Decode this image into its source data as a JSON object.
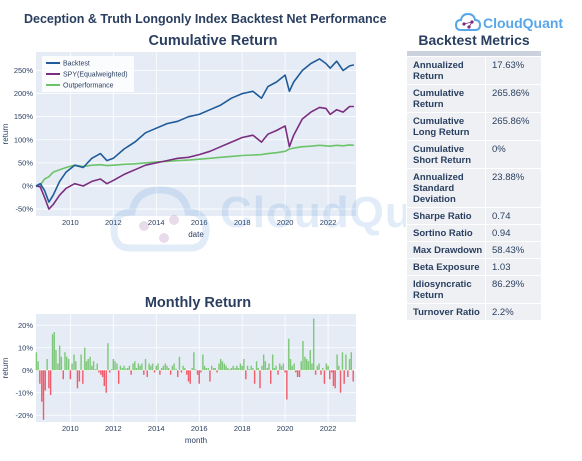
{
  "title": "Deception & Truth Longonly Index Backtest Net Performance",
  "logo_text": "CloudQuant",
  "watermark_text": "CloudQuant",
  "colors": {
    "backtest": "#1f5b99",
    "spy": "#7b2d7f",
    "outperformance": "#6cc36a",
    "positive": "#7fc77a",
    "negative": "#ee5d6c",
    "plot_bg": "#e5ecf6"
  },
  "cumulative": {
    "title": "Cumulative Return",
    "xlabel": "date",
    "ylabel": "return",
    "x_ticks": [
      "2010",
      "2012",
      "2014",
      "2016",
      "2018",
      "2020",
      "2022"
    ],
    "y_ticks": [
      "-50%",
      "0%",
      "50%",
      "100%",
      "150%",
      "200%",
      "250%"
    ],
    "legend": [
      "Backtest",
      "SPY(Equalweighted)",
      "Outperformance"
    ]
  },
  "monthly": {
    "title": "Monthly Return",
    "xlabel": "month",
    "ylabel": "return",
    "x_ticks": [
      "2010",
      "2012",
      "2014",
      "2016",
      "2018",
      "2020",
      "2022"
    ],
    "y_ticks": [
      "-20%",
      "-10%",
      "0%",
      "10%",
      "20%"
    ]
  },
  "metrics": {
    "title": "Backtest Metrics",
    "rows": [
      {
        "label": "Annualized Return",
        "value": "17.63%"
      },
      {
        "label": "Cumulative Return",
        "value": "265.86%"
      },
      {
        "label": "Cumulative Long Return",
        "value": "265.86%"
      },
      {
        "label": "Cumulative Short Return",
        "value": "0%"
      },
      {
        "label": "Annualized Standard Deviation",
        "value": "23.88%"
      },
      {
        "label": "Sharpe Ratio",
        "value": "0.74"
      },
      {
        "label": "Sortino Ratio",
        "value": "0.94"
      },
      {
        "label": "Max Drawdown",
        "value": "58.43%"
      },
      {
        "label": "Beta Exposure",
        "value": "1.03"
      },
      {
        "label": "Idiosyncratic Return",
        "value": "86.29%"
      },
      {
        "label": "Turnover Ratio",
        "value": "2.2%"
      }
    ]
  },
  "chart_data": [
    {
      "type": "line",
      "title": "Cumulative Return",
      "xlabel": "date",
      "ylabel": "return",
      "xlim": [
        2008.4,
        2023.3
      ],
      "ylim": [
        -65,
        290
      ],
      "series": [
        {
          "name": "Backtest",
          "x": [
            2008.4,
            2008.6,
            2008.8,
            2009.0,
            2009.2,
            2009.5,
            2009.8,
            2010.2,
            2010.6,
            2011.0,
            2011.4,
            2011.7,
            2012.0,
            2012.5,
            2013.0,
            2013.5,
            2014.0,
            2014.5,
            2015.0,
            2015.5,
            2016.0,
            2016.5,
            2017.0,
            2017.5,
            2018.0,
            2018.5,
            2018.9,
            2019.2,
            2019.6,
            2020.0,
            2020.2,
            2020.4,
            2020.8,
            2021.2,
            2021.6,
            2021.9,
            2022.1,
            2022.4,
            2022.7,
            2023.0,
            2023.2
          ],
          "y": [
            0,
            5,
            -10,
            -35,
            -20,
            10,
            30,
            45,
            40,
            60,
            70,
            55,
            60,
            80,
            95,
            115,
            125,
            135,
            140,
            150,
            155,
            165,
            175,
            190,
            200,
            205,
            190,
            215,
            225,
            240,
            205,
            225,
            250,
            265,
            275,
            265,
            255,
            270,
            250,
            260,
            262
          ]
        },
        {
          "name": "SPY(Equalweighted)",
          "x": [
            2008.4,
            2008.6,
            2008.8,
            2009.0,
            2009.2,
            2009.5,
            2009.8,
            2010.2,
            2010.6,
            2011.0,
            2011.4,
            2011.7,
            2012.0,
            2012.5,
            2013.0,
            2013.5,
            2014.0,
            2014.5,
            2015.0,
            2015.5,
            2016.0,
            2016.5,
            2017.0,
            2017.5,
            2018.0,
            2018.5,
            2018.9,
            2019.2,
            2019.6,
            2020.0,
            2020.2,
            2020.4,
            2020.8,
            2021.2,
            2021.6,
            2021.9,
            2022.1,
            2022.4,
            2022.7,
            2023.0,
            2023.2
          ],
          "y": [
            0,
            -2,
            -25,
            -50,
            -40,
            -20,
            -5,
            5,
            0,
            10,
            15,
            5,
            12,
            25,
            35,
            45,
            50,
            55,
            60,
            62,
            68,
            75,
            85,
            95,
            105,
            110,
            95,
            112,
            120,
            130,
            85,
            110,
            145,
            160,
            170,
            168,
            155,
            165,
            160,
            172,
            172
          ]
        },
        {
          "name": "Outperformance",
          "x": [
            2008.4,
            2008.6,
            2008.8,
            2009.0,
            2009.2,
            2009.5,
            2009.8,
            2010.2,
            2010.6,
            2011.0,
            2011.4,
            2011.7,
            2012.0,
            2012.5,
            2013.0,
            2013.5,
            2014.0,
            2014.5,
            2015.0,
            2015.5,
            2016.0,
            2016.5,
            2017.0,
            2017.5,
            2018.0,
            2018.5,
            2018.9,
            2019.2,
            2019.6,
            2020.0,
            2020.2,
            2020.4,
            2020.8,
            2021.2,
            2021.6,
            2021.9,
            2022.1,
            2022.4,
            2022.7,
            2023.0,
            2023.2
          ],
          "y": [
            0,
            2,
            15,
            20,
            30,
            35,
            40,
            45,
            42,
            45,
            46,
            44,
            45,
            47,
            48,
            50,
            52,
            53,
            55,
            56,
            58,
            60,
            62,
            64,
            66,
            67,
            68,
            70,
            72,
            75,
            80,
            82,
            85,
            86,
            88,
            87,
            86,
            88,
            87,
            89,
            88
          ]
        }
      ],
      "legend_position": "top-left",
      "grid": true
    },
    {
      "type": "bar",
      "title": "Monthly Return",
      "xlabel": "month",
      "ylabel": "return",
      "xlim": [
        2008.4,
        2023.3
      ],
      "ylim": [
        -23,
        25
      ],
      "x": [
        2008.42,
        2008.5,
        2008.58,
        2008.67,
        2008.75,
        2008.83,
        2008.92,
        2009.0,
        2009.08,
        2009.17,
        2009.25,
        2009.33,
        2009.42,
        2009.5,
        2009.58,
        2009.67,
        2009.75,
        2009.83,
        2009.92,
        2010.0,
        2010.08,
        2010.17,
        2010.25,
        2010.33,
        2010.42,
        2010.5,
        2010.58,
        2010.67,
        2010.75,
        2010.83,
        2010.92,
        2011.0,
        2011.08,
        2011.17,
        2011.25,
        2011.33,
        2011.42,
        2011.5,
        2011.58,
        2011.67,
        2011.75,
        2011.83,
        2011.92,
        2012.0,
        2012.08,
        2012.17,
        2012.25,
        2012.33,
        2012.42,
        2012.5,
        2012.58,
        2012.67,
        2012.75,
        2012.83,
        2012.92,
        2013.0,
        2013.08,
        2013.17,
        2013.25,
        2013.33,
        2013.42,
        2013.5,
        2013.58,
        2013.67,
        2013.75,
        2013.83,
        2013.92,
        2014.0,
        2014.08,
        2014.17,
        2014.25,
        2014.33,
        2014.42,
        2014.5,
        2014.58,
        2014.67,
        2014.75,
        2014.83,
        2014.92,
        2015.0,
        2015.08,
        2015.17,
        2015.25,
        2015.33,
        2015.42,
        2015.5,
        2015.58,
        2015.67,
        2015.75,
        2015.83,
        2015.92,
        2016.0,
        2016.08,
        2016.17,
        2016.25,
        2016.33,
        2016.42,
        2016.5,
        2016.58,
        2016.67,
        2016.75,
        2016.83,
        2016.92,
        2017.0,
        2017.08,
        2017.17,
        2017.25,
        2017.33,
        2017.42,
        2017.5,
        2017.58,
        2017.67,
        2017.75,
        2017.83,
        2017.92,
        2018.0,
        2018.08,
        2018.17,
        2018.25,
        2018.33,
        2018.42,
        2018.5,
        2018.58,
        2018.67,
        2018.75,
        2018.83,
        2018.92,
        2019.0,
        2019.08,
        2019.17,
        2019.25,
        2019.33,
        2019.42,
        2019.5,
        2019.58,
        2019.67,
        2019.75,
        2019.83,
        2019.92,
        2020.0,
        2020.08,
        2020.17,
        2020.25,
        2020.33,
        2020.42,
        2020.5,
        2020.58,
        2020.67,
        2020.75,
        2020.83,
        2020.92,
        2021.0,
        2021.08,
        2021.17,
        2021.25,
        2021.33,
        2021.42,
        2021.5,
        2021.58,
        2021.67,
        2021.75,
        2021.83,
        2021.92,
        2022.0,
        2022.08,
        2022.17,
        2022.25,
        2022.33,
        2022.42,
        2022.5,
        2022.58,
        2022.67,
        2022.75,
        2022.83,
        2022.92,
        2023.0,
        2023.08,
        2023.17
      ],
      "values": [
        8,
        4,
        -6,
        -14,
        -22,
        -9,
        5,
        -8,
        -11,
        16,
        17,
        9,
        3,
        11,
        6,
        -4,
        8,
        6,
        5,
        -4,
        3,
        7,
        4,
        -8,
        -5,
        7,
        -6,
        10,
        4,
        5,
        6,
        2,
        4,
        0.5,
        3,
        -1,
        -2,
        -3,
        -7,
        -10,
        12,
        -1,
        0.5,
        5,
        4,
        3,
        -6,
        2,
        1,
        2,
        0.8,
        1,
        2,
        -2,
        3,
        4,
        1,
        3,
        2,
        3,
        -2,
        5,
        -3,
        3,
        2,
        3,
        -1,
        2,
        3,
        -2,
        1,
        2,
        3,
        2,
        1,
        -2,
        2,
        3,
        0.7,
        -3,
        6,
        -1,
        2,
        1,
        -2,
        -5,
        -6,
        1,
        8,
        0.5,
        -2,
        -6,
        -1,
        7,
        2,
        1,
        1,
        -5,
        2,
        1,
        1,
        -1,
        3,
        5,
        4,
        3,
        2,
        1,
        0.5,
        1,
        2,
        1,
        2,
        1,
        3,
        2,
        5,
        -4,
        2,
        0.5,
        2,
        1,
        -6,
        4,
        1,
        -8,
        2,
        7,
        4,
        1,
        3,
        -6,
        7,
        1,
        2,
        -2,
        3,
        2,
        3,
        -1,
        -13,
        14,
        5,
        2,
        3,
        -1,
        -3,
        -3,
        4,
        13,
        6,
        5,
        4,
        9,
        3,
        23,
        -2,
        2,
        3,
        -2,
        1,
        -6,
        3,
        2,
        -4,
        -1,
        -7,
        -8,
        7,
        2,
        -10,
        8,
        -6,
        7,
        -3,
        5,
        8,
        -5
      ]
    }
  ]
}
